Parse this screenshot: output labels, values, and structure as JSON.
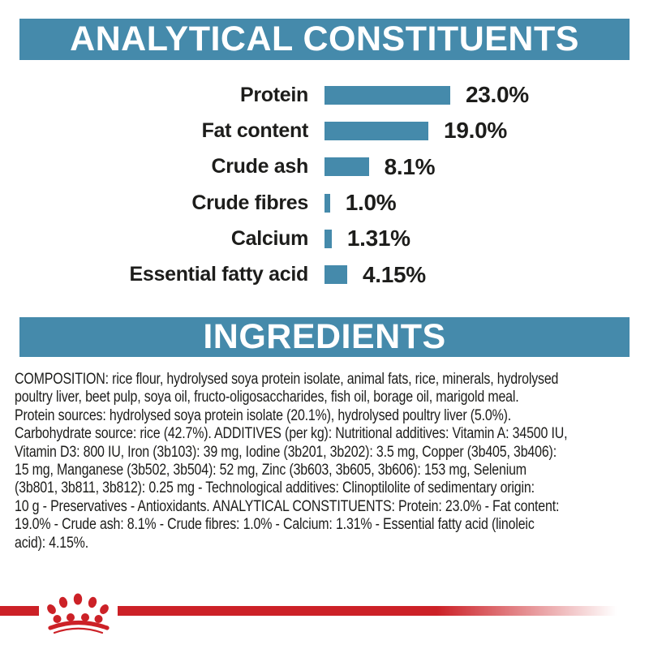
{
  "chart_data": {
    "type": "bar",
    "orientation": "horizontal",
    "title": "ANALYTICAL CONSTITUENTS",
    "categories": [
      "Protein",
      "Fat content",
      "Crude ash",
      "Crude fibres",
      "Calcium",
      "Essential fatty acid"
    ],
    "values": [
      23.0,
      19.0,
      8.1,
      1.0,
      1.31,
      4.15
    ],
    "value_labels": [
      "23.0%",
      "19.0%",
      "8.1%",
      "1.0%",
      "1.31%",
      "4.15%"
    ],
    "unit": "%",
    "xlim": [
      0,
      25
    ],
    "bar_color": "#458aab",
    "grid": false,
    "axis_visible": false,
    "value_label_position": "right-of-bar"
  },
  "ingredients": {
    "title": "INGREDIENTS",
    "lines": [
      "COMPOSITION: rice flour, hydrolysed soya protein isolate, animal fats, rice, minerals, hydrolysed",
      "poultry liver, beet pulp, soya oil, fructo-oligosaccharides, fish oil, borage oil, marigold meal.",
      "Protein sources: hydrolysed soya protein isolate (20.1%), hydrolysed poultry liver (5.0%).",
      "Carbohydrate source: rice (42.7%). ADDITIVES (per kg): Nutritional additives: Vitamin A: 34500 IU,",
      "Vitamin D3: 800 IU, Iron (3b103): 39 mg, Iodine (3b201, 3b202): 3.5 mg, Copper (3b405, 3b406):",
      "15 mg, Manganese (3b502, 3b504): 52 mg, Zinc (3b603, 3b605, 3b606): 153 mg, Selenium",
      "(3b801, 3b811, 3b812): 0.25 mg - Technological additives: Clinoptilolite of sedimentary origin:",
      "10 g - Preservatives - Antioxidants. ANALYTICAL CONSTITUENTS: Protein: 23.0% - Fat content:",
      "19.0% - Crude ash: 8.1% - Crude fibres: 1.0% - Calcium: 1.31% - Essential fatty acid (linoleic",
      "acid): 4.15%."
    ]
  },
  "footer": {
    "logo": "royal-canin-crown-paw"
  },
  "colors": {
    "accent_blue": "#458aab",
    "brand_red": "#cc2127",
    "text": "#1d1d1b",
    "banner_text": "#ffffff"
  }
}
